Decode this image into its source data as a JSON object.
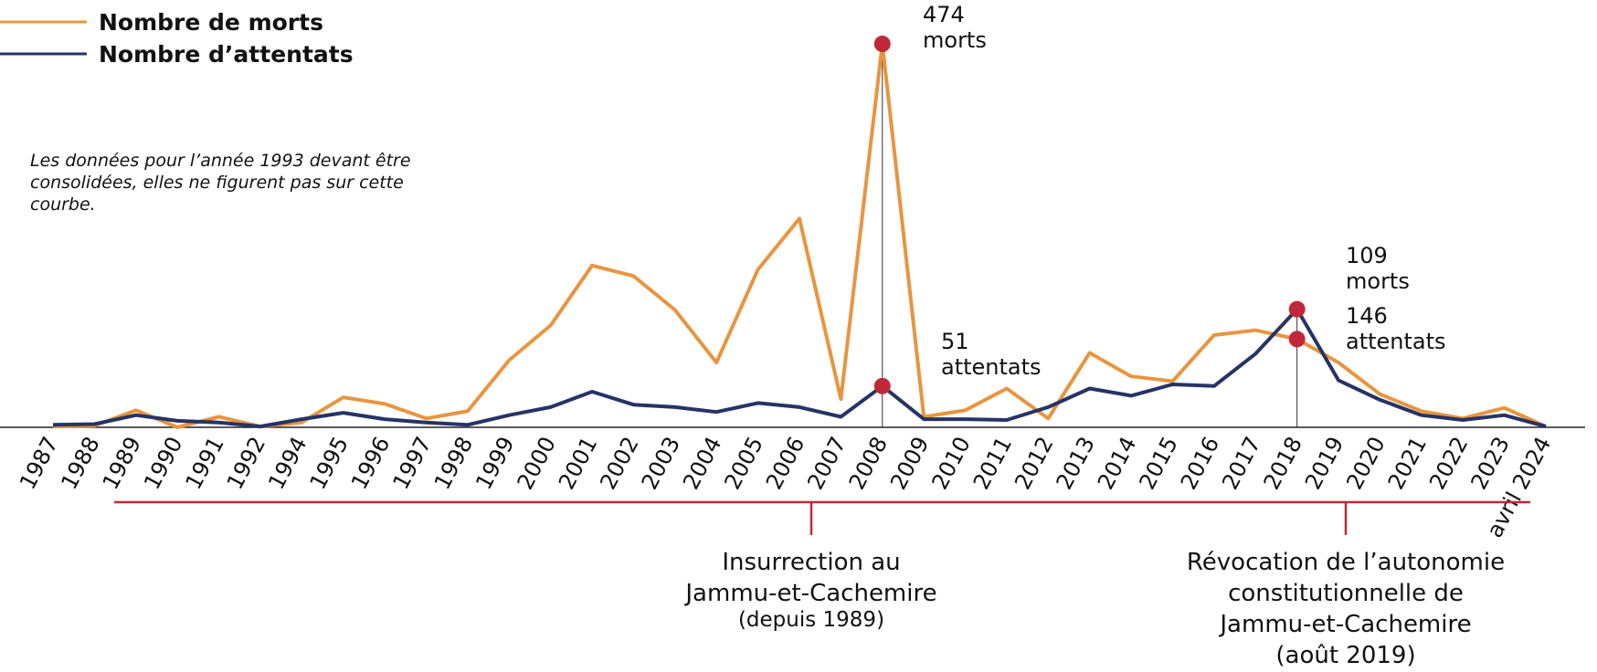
{
  "chart_data": {
    "type": "line",
    "categories": [
      "1987",
      "1988",
      "1989",
      "1990",
      "1991",
      "1992",
      "1994",
      "1995",
      "1996",
      "1997",
      "1998",
      "1999",
      "2000",
      "2001",
      "2002",
      "2003",
      "2004",
      "2005",
      "2006",
      "2007",
      "2008",
      "2009",
      "2010",
      "2011",
      "2012",
      "2013",
      "2014",
      "2015",
      "2016",
      "2017",
      "2018",
      "2019",
      "2020",
      "2021",
      "2022",
      "2023",
      "avril 2024"
    ],
    "series": [
      {
        "name": "Nombre de morts",
        "color": "#e8953f",
        "values": [
          1,
          2,
          21,
          0,
          13,
          1,
          6,
          37,
          29,
          11,
          20,
          83,
          126,
          200,
          187,
          145,
          80,
          195,
          258,
          35,
          474,
          13,
          21,
          48,
          11,
          92,
          63,
          57,
          114,
          120,
          109,
          80,
          41,
          20,
          11,
          24,
          1
        ]
      },
      {
        "name": "Nombre d’attentats",
        "color": "#263366",
        "values": [
          3,
          4,
          15,
          8,
          6,
          1,
          10,
          18,
          10,
          6,
          3,
          15,
          25,
          44,
          28,
          25,
          19,
          30,
          25,
          13,
          51,
          10,
          10,
          9,
          25,
          48,
          39,
          53,
          51,
          91,
          146,
          58,
          34,
          15,
          9,
          15,
          1
        ]
      }
    ],
    "highlight_color": "#c0283a",
    "note": [
      "Les données pour l’année 1993 devant être",
      "consolidées, elles ne figurent pas sur cette",
      "courbe."
    ],
    "annotations": [
      {
        "lines": [
          "474",
          "morts"
        ]
      },
      {
        "lines": [
          "51",
          "attentats"
        ]
      },
      {
        "lines": [
          "109",
          "morts"
        ]
      },
      {
        "lines": [
          "146",
          "attentats"
        ]
      }
    ],
    "periods": [
      {
        "lines": [
          "Insurrection au",
          "Jammu-et-Cachemire",
          "(depuis 1989)"
        ]
      },
      {
        "lines": [
          "Révocation de l’autonomie",
          "constitutionnelle de",
          "Jammu-et-Cachemire",
          "(août 2019)"
        ]
      }
    ]
  }
}
